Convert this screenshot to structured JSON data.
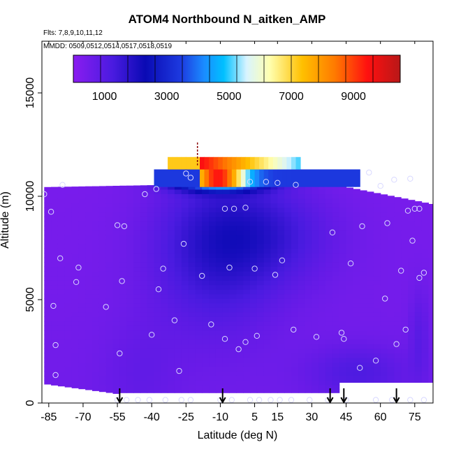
{
  "chart_data": {
    "type": "heatmap",
    "title": "ATOM4 Northbound N_aitken_AMP",
    "subtitle_flights": "Flts: 7,8,9,10,11,12",
    "subtitle_dates": "MMDD: 0509,0512,0514,0517,0518,0519",
    "xlabel": "Latitude (deg N)",
    "ylabel": "Altitude (m)",
    "xlim": [
      -88,
      83
    ],
    "ylim": [
      0,
      17500
    ],
    "x_ticks": [
      -85,
      -70,
      -55,
      -40,
      -25,
      -10,
      5,
      15,
      30,
      45,
      60,
      75
    ],
    "y_ticks": [
      0,
      5000,
      10000,
      15000
    ],
    "colorbar": {
      "range": [
        0,
        10500
      ],
      "tick_values": [
        1000,
        3000,
        5000,
        7000,
        9000
      ],
      "bands": 12,
      "colors": [
        "#8a1cf0",
        "#4a1be0",
        "#0a0ab4",
        "#1d3be0",
        "#1a8cff",
        "#00c0ff",
        "#d8f4ff",
        "#ffffb0",
        "#ffc000",
        "#ff7a00",
        "#ff1010",
        "#b81818"
      ]
    },
    "flight_arrows_lat": [
      -54,
      -9,
      38,
      44,
      67
    ],
    "tropopause_marker": {
      "lat": -20,
      "alt_range": [
        11500,
        12600
      ]
    },
    "obs_points": [
      [
        -87,
        10100
      ],
      [
        -84,
        9250
      ],
      [
        -80,
        7000
      ],
      [
        -79,
        10550
      ],
      [
        -83,
        4700
      ],
      [
        -82,
        2800
      ],
      [
        -82,
        1350
      ],
      [
        -73,
        5850
      ],
      [
        -72,
        6550
      ],
      [
        -60,
        4650
      ],
      [
        -55,
        8600
      ],
      [
        -52,
        8550
      ],
      [
        -53,
        5900
      ],
      [
        -54,
        2400
      ],
      [
        -43,
        10100
      ],
      [
        -40,
        3300
      ],
      [
        -38,
        10350
      ],
      [
        -35,
        6500
      ],
      [
        -37,
        5500
      ],
      [
        -30,
        4000
      ],
      [
        -28,
        1550
      ],
      [
        -26,
        7700
      ],
      [
        -25,
        11100
      ],
      [
        -23,
        10900
      ],
      [
        -18,
        6150
      ],
      [
        -14,
        3800
      ],
      [
        -8,
        3100
      ],
      [
        -8,
        9400
      ],
      [
        -6,
        6550
      ],
      [
        -4,
        9400
      ],
      [
        -2,
        2600
      ],
      [
        1,
        2950
      ],
      [
        1,
        9450
      ],
      [
        3,
        10700
      ],
      [
        5,
        6500
      ],
      [
        6,
        3250
      ],
      [
        10,
        10700
      ],
      [
        14,
        6200
      ],
      [
        15,
        10650
      ],
      [
        17,
        6900
      ],
      [
        22,
        3550
      ],
      [
        23,
        10550
      ],
      [
        32,
        3200
      ],
      [
        39,
        8250
      ],
      [
        43,
        3400
      ],
      [
        44,
        3100
      ],
      [
        47,
        6750
      ],
      [
        51,
        1700
      ],
      [
        52,
        8550
      ],
      [
        55,
        11150
      ],
      [
        58,
        2050
      ],
      [
        60,
        10500
      ],
      [
        62,
        5050
      ],
      [
        63,
        8700
      ],
      [
        66,
        10800
      ],
      [
        67,
        2850
      ],
      [
        69,
        6400
      ],
      [
        71,
        3550
      ],
      [
        72,
        9300
      ],
      [
        73,
        10850
      ],
      [
        74,
        7850
      ],
      [
        75,
        9400
      ],
      [
        77,
        6050
      ],
      [
        77,
        9400
      ],
      [
        79,
        6300
      ],
      [
        -55,
        150
      ],
      [
        -51,
        150
      ],
      [
        -46,
        150
      ],
      [
        -41,
        150
      ],
      [
        -34,
        150
      ],
      [
        -27,
        150
      ],
      [
        -23,
        150
      ],
      [
        -10,
        150
      ],
      [
        -5,
        150
      ],
      [
        3,
        150
      ],
      [
        7,
        150
      ],
      [
        12,
        150
      ],
      [
        16,
        150
      ],
      [
        21,
        150
      ],
      [
        29,
        150
      ],
      [
        37,
        150
      ],
      [
        45,
        150
      ],
      [
        58,
        150
      ],
      [
        65,
        150
      ],
      [
        73,
        150
      ],
      [
        79,
        150
      ]
    ]
  }
}
